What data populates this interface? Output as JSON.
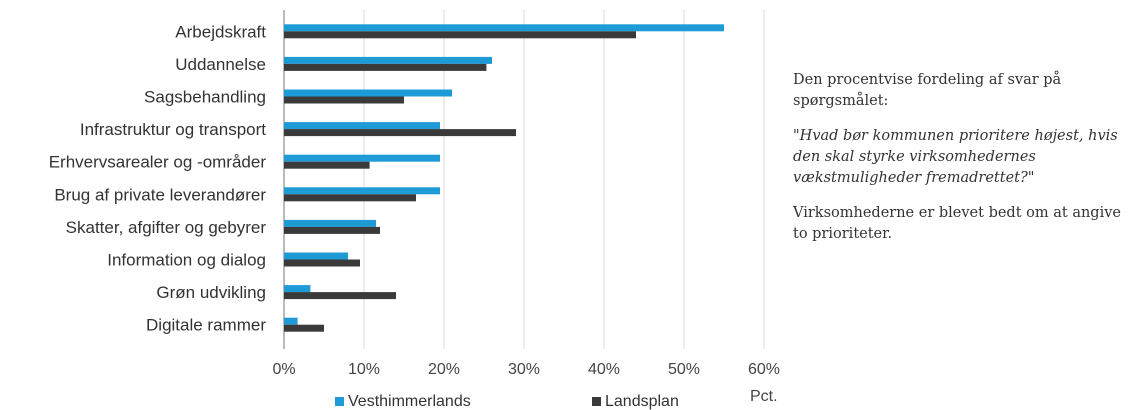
{
  "chart_data": {
    "type": "bar",
    "orientation": "horizontal",
    "categories": [
      "Arbejdskraft",
      "Uddannelse",
      "Sagsbehandling",
      "Infrastruktur og transport",
      "Erhvervsarealer og -områder",
      "Brug af private leverandører",
      "Skatter, afgifter og gebyrer",
      "Information og dialog",
      "Grøn udvikling",
      "Digitale rammer"
    ],
    "series": [
      {
        "name": "Vesthimmerlands",
        "color": "#1e9bd7",
        "values": [
          55,
          26,
          21,
          19.5,
          19.5,
          19.5,
          11.5,
          8,
          3.3,
          1.7
        ]
      },
      {
        "name": "Landsplan",
        "color": "#3a3a3a",
        "values": [
          44,
          25.3,
          15,
          29,
          10.7,
          16.5,
          12,
          9.5,
          14,
          5
        ]
      }
    ],
    "xlim": [
      0,
      60
    ],
    "xticks": [
      "0%",
      "10%",
      "20%",
      "30%",
      "40%",
      "50%",
      "60%"
    ],
    "xlabel": "Pct.",
    "grid": true,
    "legend_position": "bottom"
  },
  "note": {
    "intro": "Den procentvise fordeling af svar på spørgsmålet:",
    "question": "\"Hvad bør kommunen prioritere højest, hvis den skal styrke virksomhedernes vækstmuligheder fremadrettet?\"",
    "instruction": "Virksomhederne er blevet bedt om at angive to prioriteter."
  }
}
